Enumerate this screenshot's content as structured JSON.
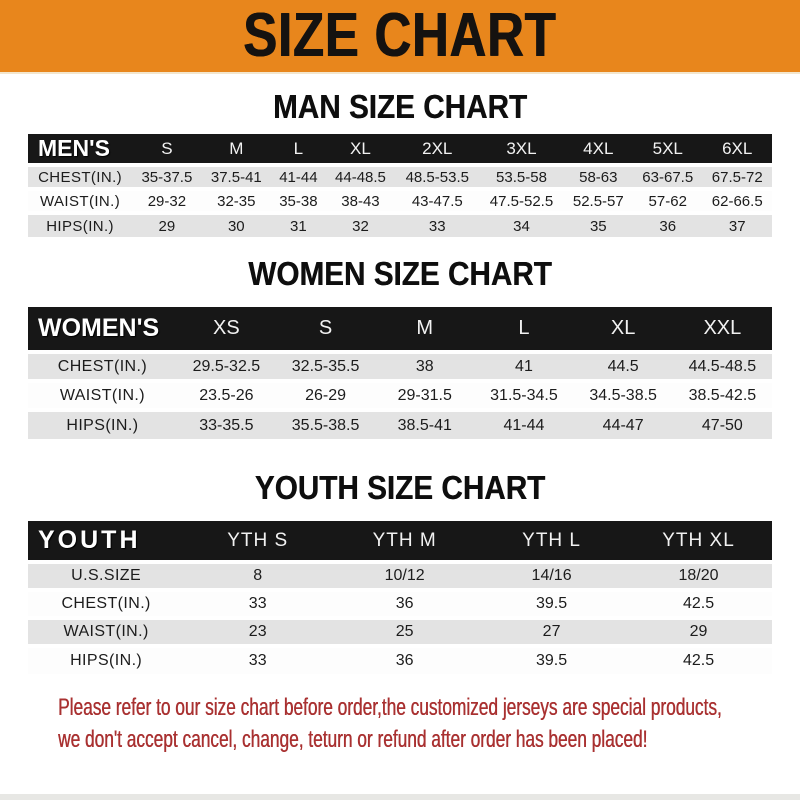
{
  "banner": {
    "title": "SIZE CHART"
  },
  "colors": {
    "banner_orange": "#E8861C",
    "header_black": "#171717",
    "row_gray": "#E3E3E3",
    "footer_red": "#A93131"
  },
  "sections": [
    {
      "heading": "MAN SIZE CHART",
      "table": {
        "header": [
          "MEN'S",
          "S",
          "M",
          "L",
          "XL",
          "2XL",
          "3XL",
          "4XL",
          "5XL",
          "6XL"
        ],
        "rows": [
          [
            "CHEST(IN.)",
            "35-37.5",
            "37.5-41",
            "41-44",
            "44-48.5",
            "48.5-53.5",
            "53.5-58",
            "58-63",
            "63-67.5",
            "67.5-72"
          ],
          [
            "WAIST(IN.)",
            "29-32",
            "32-35",
            "35-38",
            "38-43",
            "43-47.5",
            "47.5-52.5",
            "52.5-57",
            "57-62",
            "62-66.5"
          ],
          [
            "HIPS(IN.)",
            "29",
            "30",
            "31",
            "32",
            "33",
            "34",
            "35",
            "36",
            "37"
          ]
        ]
      }
    },
    {
      "heading": "WOMEN SIZE CHART",
      "table": {
        "header": [
          "WOMEN'S",
          "XS",
          "S",
          "M",
          "L",
          "XL",
          "XXL"
        ],
        "rows": [
          [
            "CHEST(IN.)",
            "29.5-32.5",
            "32.5-35.5",
            "38",
            "41",
            "44.5",
            "44.5-48.5"
          ],
          [
            "WAIST(IN.)",
            "23.5-26",
            "26-29",
            "29-31.5",
            "31.5-34.5",
            "34.5-38.5",
            "38.5-42.5"
          ],
          [
            "HIPS(IN.)",
            "33-35.5",
            "35.5-38.5",
            "38.5-41",
            "41-44",
            "44-47",
            "47-50"
          ]
        ]
      }
    },
    {
      "heading": "YOUTH SIZE CHART",
      "table": {
        "header": [
          "YOUTH",
          "YTH S",
          "YTH M",
          "YTH L",
          "YTH XL"
        ],
        "rows": [
          [
            "U.S.SIZE",
            "8",
            "10/12",
            "14/16",
            "18/20"
          ],
          [
            "CHEST(IN.)",
            "33",
            "36",
            "39.5",
            "42.5"
          ],
          [
            "WAIST(IN.)",
            "23",
            "25",
            "27",
            "29"
          ],
          [
            "HIPS(IN.)",
            "33",
            "36",
            "39.5",
            "42.5"
          ]
        ]
      }
    }
  ],
  "footer": {
    "line1": "Please refer to our size chart before order,the customized jerseys are special products,",
    "line2": "we don't accept cancel, change, teturn or refund after order has been placed!"
  }
}
